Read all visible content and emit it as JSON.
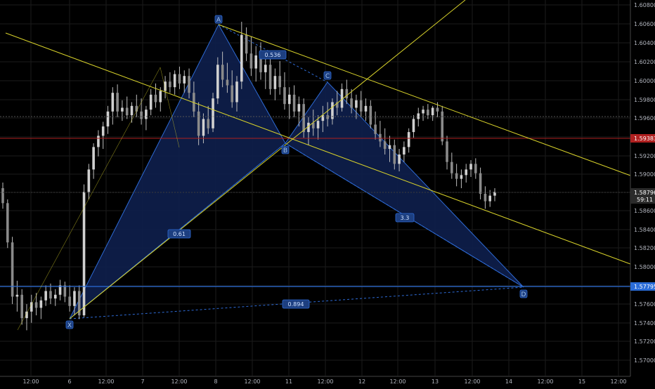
{
  "chart": {
    "symbol_note": "",
    "colors": {
      "background": "#000000",
      "candle_up": "#c8c8c8",
      "candle_down": "#c8c8c8",
      "pattern_fill": "#0e1f4d",
      "pattern_stroke": "#2e6bd6",
      "trend_line": "#d7d12a",
      "price_red": "#b02020",
      "price_blue": "#2a6cd8",
      "grid": "#1b1b1b"
    }
  },
  "price_axis": {
    "ticks": [
      "1.60800",
      "1.60600",
      "1.60400",
      "1.60200",
      "1.60000",
      "1.59800",
      "1.59600",
      "1.59400",
      "1.59200",
      "1.59000",
      "1.58800",
      "1.58600",
      "1.58400",
      "1.58200",
      "1.58000",
      "1.57800",
      "1.57600",
      "1.57400",
      "1.57200",
      "1.57000"
    ],
    "markers": [
      {
        "name": "red-level",
        "text": "1.59383",
        "color": "#b02020"
      },
      {
        "name": "current-price",
        "text": "1.58796",
        "sub": "59:11",
        "color": "#2b2b2b"
      },
      {
        "name": "blue-level",
        "text": "1.57795",
        "color": "#2a6cd8"
      }
    ]
  },
  "time_axis": {
    "ticks": [
      "12:00",
      "6",
      "12:00",
      "7",
      "12:00",
      "8",
      "12:00",
      "11",
      "12:00",
      "12",
      "12:00",
      "13",
      "12:00",
      "14",
      "12:00",
      "15",
      "12:00"
    ]
  },
  "pattern": {
    "points": [
      {
        "name": "X",
        "label": "X"
      },
      {
        "name": "A",
        "label": "A"
      },
      {
        "name": "B",
        "label": "B"
      },
      {
        "name": "C",
        "label": "C"
      },
      {
        "name": "D",
        "label": "D"
      }
    ],
    "ratios": [
      {
        "name": "xab",
        "text": "0.61"
      },
      {
        "name": "abc",
        "text": "0.536"
      },
      {
        "name": "bcd",
        "text": "3.3"
      },
      {
        "name": "xd",
        "text": "0.894"
      }
    ]
  },
  "candles": [
    [
      1.5884,
      1.589,
      1.5862,
      1.5868
    ],
    [
      1.5868,
      1.5872,
      1.582,
      1.5826
    ],
    [
      1.5826,
      1.5832,
      1.576,
      1.5768
    ],
    [
      1.5768,
      1.5785,
      1.5752,
      1.577
    ],
    [
      1.577,
      1.5776,
      1.5738,
      1.5745
    ],
    [
      1.5745,
      1.576,
      1.5732,
      1.5752
    ],
    [
      1.5752,
      1.577,
      1.574,
      1.5762
    ],
    [
      1.5762,
      1.5772,
      1.5748,
      1.5756
    ],
    [
      1.5756,
      1.5768,
      1.5744,
      1.5764
    ],
    [
      1.5764,
      1.578,
      1.5758,
      1.5774
    ],
    [
      1.5774,
      1.5782,
      1.576,
      1.5766
    ],
    [
      1.5766,
      1.5776,
      1.5758,
      1.577
    ],
    [
      1.577,
      1.5786,
      1.5764,
      1.578
    ],
    [
      1.578,
      1.5784,
      1.5762,
      1.5768
    ],
    [
      1.5768,
      1.578,
      1.5752,
      1.5758
    ],
    [
      1.5758,
      1.5778,
      1.5748,
      1.5774
    ],
    [
      1.5774,
      1.578,
      1.5744,
      1.5748
    ],
    [
      1.5748,
      1.5888,
      1.5746,
      1.588
    ],
    [
      1.588,
      1.591,
      1.5872,
      1.5904
    ],
    [
      1.5904,
      1.5932,
      1.5894,
      1.5928
    ],
    [
      1.5928,
      1.5946,
      1.5918,
      1.594
    ],
    [
      1.594,
      1.5955,
      1.5926,
      1.595
    ],
    [
      1.595,
      1.5972,
      1.5942,
      1.5966
    ],
    [
      1.5966,
      1.5992,
      1.5952,
      1.5986
    ],
    [
      1.5986,
      1.5995,
      1.596,
      1.5966
    ],
    [
      1.5966,
      1.5978,
      1.5956,
      1.597
    ],
    [
      1.597,
      1.5982,
      1.5958,
      1.5962
    ],
    [
      1.5962,
      1.5976,
      1.5954,
      1.5972
    ],
    [
      1.5972,
      1.5984,
      1.596,
      1.5966
    ],
    [
      1.5966,
      1.598,
      1.5952,
      1.5958
    ],
    [
      1.5958,
      1.5972,
      1.5946,
      1.5968
    ],
    [
      1.5968,
      1.599,
      1.5962,
      1.5984
    ],
    [
      1.5984,
      1.5996,
      1.597,
      1.5976
    ],
    [
      1.5976,
      1.5992,
      1.5966,
      1.5988
    ],
    [
      1.5988,
      1.6004,
      1.598,
      1.5998
    ],
    [
      1.5998,
      1.6008,
      1.5986,
      1.5992
    ],
    [
      1.5992,
      1.601,
      1.5984,
      1.6006
    ],
    [
      1.6006,
      1.6014,
      1.599,
      1.5996
    ],
    [
      1.5996,
      1.601,
      1.5986,
      1.6004
    ],
    [
      1.6004,
      1.6012,
      1.598,
      1.5986
    ],
    [
      1.5986,
      1.5998,
      1.596,
      1.5966
    ],
    [
      1.5966,
      1.5976,
      1.593,
      1.594
    ],
    [
      1.594,
      1.5964,
      1.5932,
      1.5958
    ],
    [
      1.5958,
      1.5972,
      1.5942,
      1.5948
    ],
    [
      1.5948,
      1.5986,
      1.5944,
      1.598
    ],
    [
      1.598,
      1.6024,
      1.5974,
      1.6016
    ],
    [
      1.6016,
      1.603,
      1.5992,
      1.6
    ],
    [
      1.6,
      1.6018,
      1.5986,
      1.5994
    ],
    [
      1.5994,
      1.601,
      1.597,
      1.5976
    ],
    [
      1.5976,
      1.6004,
      1.5966,
      1.5998
    ],
    [
      1.5998,
      1.6062,
      1.599,
      1.6048
    ],
    [
      1.6048,
      1.6056,
      1.602,
      1.6028
    ],
    [
      1.6028,
      1.6046,
      1.6004,
      1.6012
    ],
    [
      1.6012,
      1.6036,
      1.5998,
      1.6026
    ],
    [
      1.6026,
      1.604,
      1.6,
      1.6008
    ],
    [
      1.6008,
      1.603,
      1.599,
      1.6016
    ],
    [
      1.6016,
      1.6026,
      1.5984,
      1.599
    ],
    [
      1.599,
      1.6012,
      1.5978,
      1.6004
    ],
    [
      1.6004,
      1.602,
      1.5984,
      1.5992
    ],
    [
      1.5992,
      1.6008,
      1.5968,
      1.5974
    ],
    [
      1.5974,
      1.5992,
      1.5958,
      1.5984
    ],
    [
      1.5984,
      1.5994,
      1.596,
      1.5966
    ],
    [
      1.5966,
      1.5982,
      1.595,
      1.5974
    ],
    [
      1.5974,
      1.598,
      1.5938,
      1.5944
    ],
    [
      1.5944,
      1.596,
      1.593,
      1.5954
    ],
    [
      1.5954,
      1.5968,
      1.594,
      1.5948
    ],
    [
      1.5948,
      1.5962,
      1.5936,
      1.5956
    ],
    [
      1.5956,
      1.5972,
      1.5944,
      1.5962
    ],
    [
      1.5962,
      1.5976,
      1.595,
      1.5958
    ],
    [
      1.5958,
      1.598,
      1.5952,
      1.5976
    ],
    [
      1.5976,
      1.5988,
      1.5962,
      1.597
    ],
    [
      1.597,
      1.5996,
      1.5966,
      1.599
    ],
    [
      1.599,
      1.6,
      1.5974,
      1.598
    ],
    [
      1.598,
      1.599,
      1.5964,
      1.597
    ],
    [
      1.597,
      1.5984,
      1.5958,
      1.5978
    ],
    [
      1.5978,
      1.5988,
      1.596,
      1.5966
    ],
    [
      1.5966,
      1.598,
      1.5956,
      1.5972
    ],
    [
      1.5972,
      1.5978,
      1.5948,
      1.5952
    ],
    [
      1.5952,
      1.5966,
      1.5936,
      1.5942
    ],
    [
      1.5942,
      1.5956,
      1.5928,
      1.5934
    ],
    [
      1.5934,
      1.5948,
      1.592,
      1.5926
    ],
    [
      1.5926,
      1.594,
      1.5912,
      1.593
    ],
    [
      1.593,
      1.5936,
      1.5904,
      1.591
    ],
    [
      1.591,
      1.5926,
      1.5902,
      1.592
    ],
    [
      1.592,
      1.5934,
      1.5912,
      1.5928
    ],
    [
      1.5928,
      1.5948,
      1.5922,
      1.5944
    ],
    [
      1.5944,
      1.5962,
      1.5938,
      1.5958
    ],
    [
      1.5958,
      1.597,
      1.595,
      1.5964
    ],
    [
      1.5964,
      1.5972,
      1.5956,
      1.5968
    ],
    [
      1.5968,
      1.5974,
      1.5958,
      1.5962
    ],
    [
      1.5962,
      1.5972,
      1.5956,
      1.597
    ],
    [
      1.597,
      1.5976,
      1.596,
      1.5966
    ],
    [
      1.5966,
      1.5972,
      1.593,
      1.5934
    ],
    [
      1.5934,
      1.594,
      1.5904,
      1.5912
    ],
    [
      1.5912,
      1.5922,
      1.5894,
      1.59
    ],
    [
      1.59,
      1.591,
      1.5886,
      1.5894
    ],
    [
      1.5894,
      1.5904,
      1.5884,
      1.5898
    ],
    [
      1.5898,
      1.591,
      1.589,
      1.5904
    ],
    [
      1.5904,
      1.5914,
      1.5896,
      1.591
    ],
    [
      1.591,
      1.5916,
      1.5894,
      1.59
    ],
    [
      1.59,
      1.5906,
      1.5872,
      1.5878
    ],
    [
      1.5878,
      1.5886,
      1.5862,
      1.587
    ],
    [
      1.587,
      1.5882,
      1.5864,
      1.5876
    ],
    [
      1.5876,
      1.5884,
      1.587,
      1.588
    ]
  ]
}
